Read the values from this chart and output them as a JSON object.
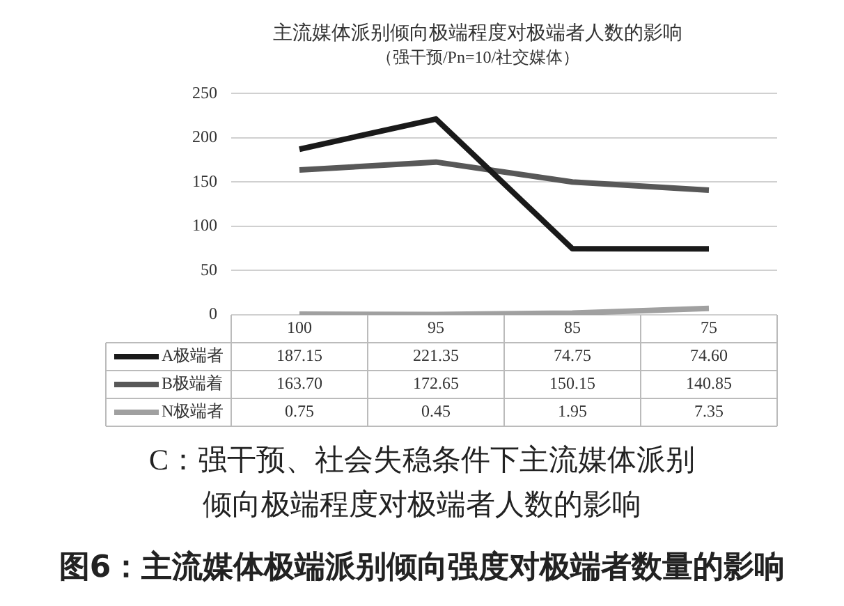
{
  "chart_data": {
    "type": "line",
    "title": "主流媒体派别倾向极端程度对极端者人数的影响",
    "subtitle": "（强干预/Pn=10/社交媒体）",
    "categories": [
      "100",
      "95",
      "85",
      "75"
    ],
    "series": [
      {
        "name": "A极端者",
        "color": "#1a1a1a",
        "values": [
          187.15,
          221.35,
          74.75,
          74.6
        ],
        "value_labels": [
          "187.15",
          "221.35",
          "74.75",
          "74.60"
        ]
      },
      {
        "name": "B极端着",
        "color": "#585858",
        "values": [
          163.7,
          172.65,
          150.15,
          140.85
        ],
        "value_labels": [
          "163.70",
          "172.65",
          "150.15",
          "140.85"
        ]
      },
      {
        "name": "N极端者",
        "color": "#a0a0a0",
        "values": [
          0.75,
          0.45,
          1.95,
          7.35
        ],
        "value_labels": [
          "0.75",
          "0.45",
          "1.95",
          "7.35"
        ]
      }
    ],
    "ylim": [
      0,
      250
    ],
    "yticks": [
      0,
      50,
      100,
      150,
      200,
      250
    ],
    "grid": "y",
    "legend": "bottom",
    "marker": "none",
    "line_style": "solid",
    "annotations": [
      "C：强干预、社会失稳条件下主流媒体派别倾向极端程度对极端者人数的影响",
      "图6：主流媒体极端派别倾向强度对极端者数量的影响"
    ]
  }
}
